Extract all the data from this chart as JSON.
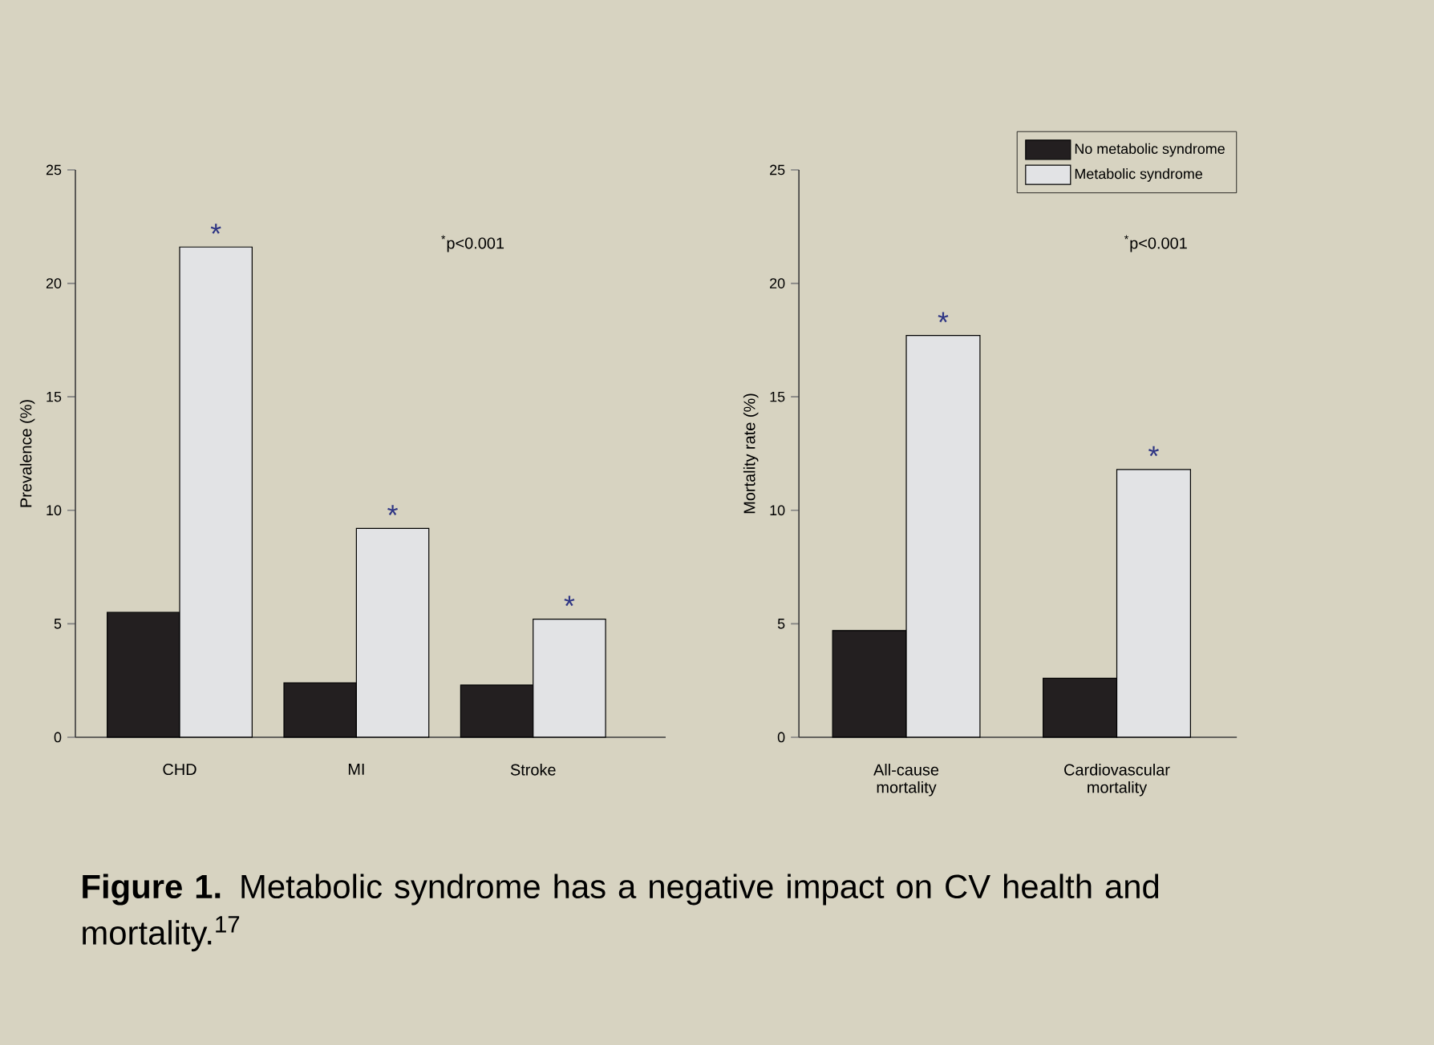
{
  "chart_data": [
    {
      "type": "bar",
      "ylabel": "Prevalence (%)",
      "categories": [
        "CHD",
        "MI",
        "Stroke"
      ],
      "series": [
        {
          "color": "#231f20",
          "values": [
            5.5,
            2.4,
            2.3
          ]
        },
        {
          "color": "#e2e3e5",
          "values": [
            21.6,
            9.2,
            5.2
          ]
        }
      ],
      "ylim": [
        0,
        25
      ],
      "yticks": [
        0,
        5,
        10,
        15,
        20,
        25
      ],
      "annotations": [
        "$^{*}$p<0.001",
        {
          "text": "*",
          "x": "CHD",
          "y": 21.6
        },
        {
          "text": "*",
          "x": "MI",
          "y": 9.2
        },
        {
          "text": "*",
          "x": "Stroke",
          "y": 5.2
        },
        "**Figure 1.** Metabolic syndrome has a negative impact on CV health and mortality.$^{17}$"
      ]
    },
    {
      "type": "bar",
      "ylabel": "Mortality rate (%)",
      "categories": [
        "All-cause mortality",
        "Cardiovascular mortality"
      ],
      "series": [
        {
          "name": "No metabolic syndrome",
          "color": "#231f20",
          "values": [
            4.7,
            2.6
          ]
        },
        {
          "name": "Metabolic syndrome",
          "color": "#e2e3e5",
          "values": [
            17.7,
            11.8
          ]
        }
      ],
      "ylim": [
        0,
        25
      ],
      "yticks": [
        0,
        5,
        10,
        15,
        20,
        25
      ],
      "legend": "top right",
      "annotations": [
        "$^{*}$p<0.001",
        {
          "text": "*",
          "x": "All-cause mortality",
          "y": 17.7
        },
        {
          "text": "*",
          "x": "Cardiovascular mortality",
          "y": 11.8
        }
      ]
    }
  ]
}
